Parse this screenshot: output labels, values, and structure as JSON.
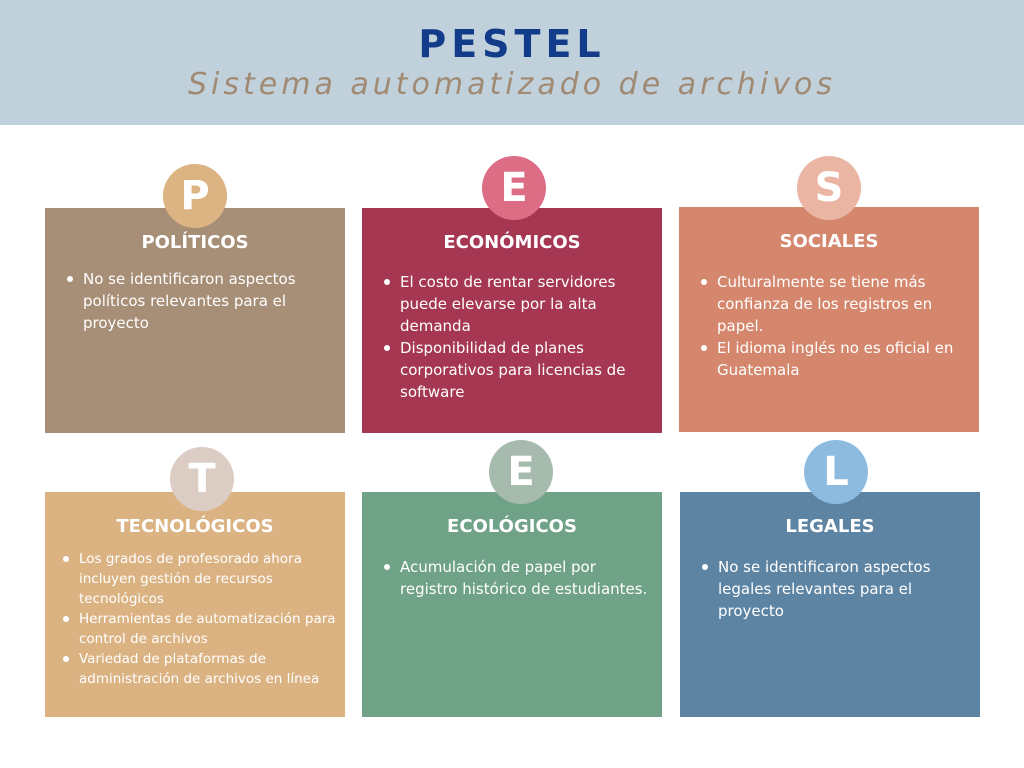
{
  "header": {
    "title": "PESTEL",
    "subtitle": "Sistema automatizado de archivos"
  },
  "factors": [
    {
      "letter": "P",
      "title": "POLÍTICOS",
      "items": [
        "No se identificaron aspectos políticos relevantes para el proyecto"
      ],
      "card_color": "#a78e76",
      "badge_color": "#dcb382"
    },
    {
      "letter": "E",
      "title": "ECONÓMICOS",
      "items": [
        "El costo de rentar servidores puede elevarse por la alta demanda",
        "Disponibilidad de planes corporativos para licencias de software"
      ],
      "card_color": "#a53752",
      "badge_color": "#dd6c85"
    },
    {
      "letter": "S",
      "title": "SOCIALES",
      "items": [
        "Culturalmente se tiene más confianza de los registros en papel.",
        "El idioma inglés no es oficial en Guatemala"
      ],
      "card_color": "#d4876c",
      "badge_color": "#eab6a3"
    },
    {
      "letter": "T",
      "title": "TECNOLÓGICOS",
      "items": [
        "Los grados de profesorado ahora incluyen gestión de recursos tecnológicos",
        "Herramientas de automatización para control de archivos",
        "Variedad de plataformas de administración de archivos en línea"
      ],
      "card_color": "#dbb383",
      "badge_color": "#dccdc4"
    },
    {
      "letter": "E",
      "title": "ECOLÓGICOS",
      "items": [
        "Acumulación de papel por registro histórico de estudiantes."
      ],
      "card_color": "#6fa287",
      "badge_color": "#a6bbae"
    },
    {
      "letter": "L",
      "title": "LEGALES",
      "items": [
        "No se identificaron aspectos legales relevantes para el proyecto"
      ],
      "card_color": "#5e84a3",
      "badge_color": "#8dbbe0"
    }
  ]
}
